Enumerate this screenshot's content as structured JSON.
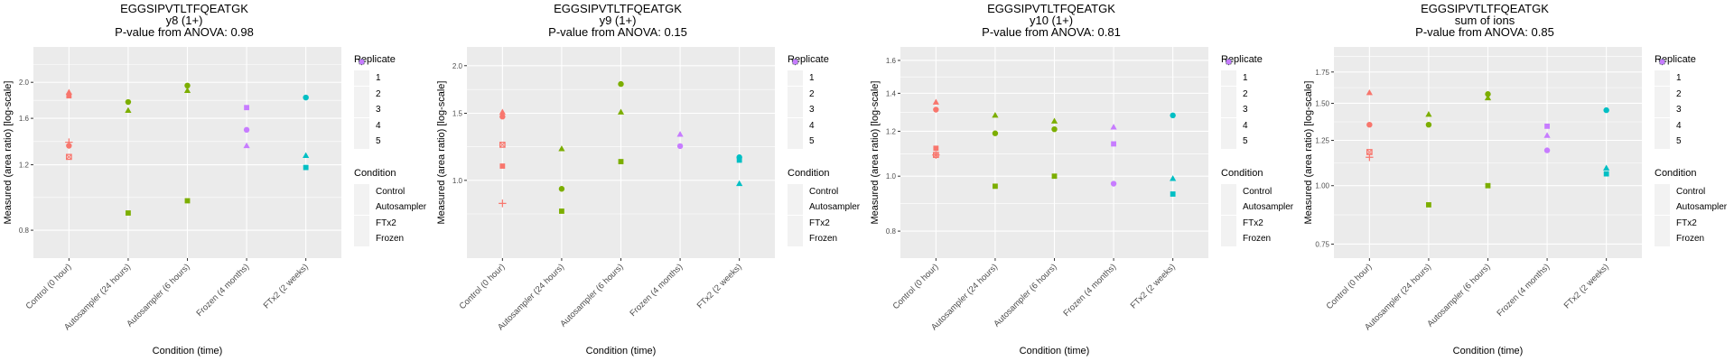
{
  "chart_data": [
    {
      "type": "scatter",
      "title": [
        "EGGSIPVTLTFQEATGK",
        "y8 (1+)",
        "P-value from ANOVA: 0.98"
      ],
      "xlabel": "Condition (time)",
      "ylabel": "Measured (area ratio) [log-scale]",
      "yscale": "log",
      "ylim": [
        0.673,
        2.49
      ],
      "yticks": [
        0.8,
        1.2,
        1.6,
        2.0
      ],
      "ytick_labels": [
        "0.8",
        "1.2",
        "1.6",
        "2.0"
      ],
      "categories": [
        "Control (0 hour)",
        "Autosampler (24 hours)",
        "Autosampler (6 hours)",
        "Frozen (4 months)",
        "FTx2 (2 weeks)"
      ],
      "points": [
        {
          "x": "Control (0 hour)",
          "y": 1.88,
          "condition": "Control",
          "replicate": 2
        },
        {
          "x": "Control (0 hour)",
          "y": 1.84,
          "condition": "Control",
          "replicate": 3
        },
        {
          "x": "Control (0 hour)",
          "y": 1.38,
          "condition": "Control",
          "replicate": 4
        },
        {
          "x": "Control (0 hour)",
          "y": 1.35,
          "condition": "Control",
          "replicate": 1
        },
        {
          "x": "Control (0 hour)",
          "y": 1.26,
          "condition": "Control",
          "replicate": 5
        },
        {
          "x": "Autosampler (24 hours)",
          "y": 1.77,
          "condition": "Autosampler",
          "replicate": 1
        },
        {
          "x": "Autosampler (24 hours)",
          "y": 1.68,
          "condition": "Autosampler",
          "replicate": 2
        },
        {
          "x": "Autosampler (24 hours)",
          "y": 0.89,
          "condition": "Autosampler",
          "replicate": 3
        },
        {
          "x": "Autosampler (6 hours)",
          "y": 1.96,
          "condition": "Autosampler",
          "replicate": 1
        },
        {
          "x": "Autosampler (6 hours)",
          "y": 1.9,
          "condition": "Autosampler",
          "replicate": 2
        },
        {
          "x": "Autosampler (6 hours)",
          "y": 0.96,
          "condition": "Autosampler",
          "replicate": 3
        },
        {
          "x": "Frozen (4 months)",
          "y": 1.71,
          "condition": "Frozen",
          "replicate": 3
        },
        {
          "x": "Frozen (4 months)",
          "y": 1.49,
          "condition": "Frozen",
          "replicate": 1
        },
        {
          "x": "Frozen (4 months)",
          "y": 1.35,
          "condition": "Frozen",
          "replicate": 2
        },
        {
          "x": "FTx2 (2 weeks)",
          "y": 1.82,
          "condition": "FTx2",
          "replicate": 1
        },
        {
          "x": "FTx2 (2 weeks)",
          "y": 1.27,
          "condition": "FTx2",
          "replicate": 2
        },
        {
          "x": "FTx2 (2 weeks)",
          "y": 1.18,
          "condition": "FTx2",
          "replicate": 3
        }
      ]
    },
    {
      "type": "scatter",
      "title": [
        "EGGSIPVTLTFQEATGK",
        "y9 (1+)",
        "P-value from ANOVA: 0.15"
      ],
      "xlabel": "Condition (time)",
      "ylabel": "Measured (area ratio) [log-scale]",
      "yscale": "log",
      "ylim": [
        0.625,
        2.24
      ],
      "yticks": [
        1.0,
        1.5,
        2.0
      ],
      "ytick_labels": [
        "1.0",
        "1.5",
        "2.0"
      ],
      "categories": [
        "Control (0 hour)",
        "Autosampler (24 hours)",
        "Autosampler (6 hours)",
        "Frozen (4 months)",
        "FTx2 (2 weeks)"
      ],
      "points": [
        {
          "x": "Control (0 hour)",
          "y": 1.51,
          "condition": "Control",
          "replicate": 2
        },
        {
          "x": "Control (0 hour)",
          "y": 1.47,
          "condition": "Control",
          "replicate": 1
        },
        {
          "x": "Control (0 hour)",
          "y": 1.24,
          "condition": "Control",
          "replicate": 5
        },
        {
          "x": "Control (0 hour)",
          "y": 1.09,
          "condition": "Control",
          "replicate": 3
        },
        {
          "x": "Control (0 hour)",
          "y": 0.87,
          "condition": "Control",
          "replicate": 4
        },
        {
          "x": "Autosampler (24 hours)",
          "y": 1.21,
          "condition": "Autosampler",
          "replicate": 2
        },
        {
          "x": "Autosampler (24 hours)",
          "y": 0.95,
          "condition": "Autosampler",
          "replicate": 1
        },
        {
          "x": "Autosampler (24 hours)",
          "y": 0.83,
          "condition": "Autosampler",
          "replicate": 3
        },
        {
          "x": "Autosampler (6 hours)",
          "y": 1.79,
          "condition": "Autosampler",
          "replicate": 1
        },
        {
          "x": "Autosampler (6 hours)",
          "y": 1.51,
          "condition": "Autosampler",
          "replicate": 2
        },
        {
          "x": "Autosampler (6 hours)",
          "y": 1.12,
          "condition": "Autosampler",
          "replicate": 3
        },
        {
          "x": "Frozen (4 months)",
          "y": 1.32,
          "condition": "Frozen",
          "replicate": 2
        },
        {
          "x": "Frozen (4 months)",
          "y": 1.23,
          "condition": "Frozen",
          "replicate": 1
        },
        {
          "x": "FTx2 (2 weeks)",
          "y": 1.15,
          "condition": "FTx2",
          "replicate": 1
        },
        {
          "x": "FTx2 (2 weeks)",
          "y": 1.13,
          "condition": "FTx2",
          "replicate": 3
        },
        {
          "x": "FTx2 (2 weeks)",
          "y": 0.98,
          "condition": "FTx2",
          "replicate": 2
        }
      ]
    },
    {
      "type": "scatter",
      "title": [
        "EGGSIPVTLTFQEATGK",
        "y10 (1+)",
        "P-value from ANOVA: 0.81"
      ],
      "xlabel": "Condition (time)",
      "ylabel": "Measured (area ratio) [log-scale]",
      "yscale": "log",
      "ylim": [
        0.717,
        1.69
      ],
      "yticks": [
        0.8,
        1.0,
        1.2,
        1.4,
        1.6
      ],
      "ytick_labels": [
        "0.8",
        "1.0",
        "1.2",
        "1.4",
        "1.6"
      ],
      "categories": [
        "Control (0 hour)",
        "Autosampler (24 hours)",
        "Autosampler (6 hours)",
        "Frozen (4 months)",
        "FTx2 (2 weeks)"
      ],
      "points": [
        {
          "x": "Control (0 hour)",
          "y": 1.35,
          "condition": "Control",
          "replicate": 2
        },
        {
          "x": "Control (0 hour)",
          "y": 1.31,
          "condition": "Control",
          "replicate": 1
        },
        {
          "x": "Control (0 hour)",
          "y": 1.12,
          "condition": "Control",
          "replicate": 3
        },
        {
          "x": "Control (0 hour)",
          "y": 1.09,
          "condition": "Control",
          "replicate": 4
        },
        {
          "x": "Control (0 hour)",
          "y": 1.09,
          "condition": "Control",
          "replicate": 5
        },
        {
          "x": "Autosampler (24 hours)",
          "y": 1.28,
          "condition": "Autosampler",
          "replicate": 2
        },
        {
          "x": "Autosampler (24 hours)",
          "y": 1.19,
          "condition": "Autosampler",
          "replicate": 1
        },
        {
          "x": "Autosampler (24 hours)",
          "y": 0.96,
          "condition": "Autosampler",
          "replicate": 3
        },
        {
          "x": "Autosampler (6 hours)",
          "y": 1.25,
          "condition": "Autosampler",
          "replicate": 2
        },
        {
          "x": "Autosampler (6 hours)",
          "y": 1.21,
          "condition": "Autosampler",
          "replicate": 1
        },
        {
          "x": "Autosampler (6 hours)",
          "y": 1.0,
          "condition": "Autosampler",
          "replicate": 3
        },
        {
          "x": "Frozen (4 months)",
          "y": 1.22,
          "condition": "Frozen",
          "replicate": 2
        },
        {
          "x": "Frozen (4 months)",
          "y": 1.14,
          "condition": "Frozen",
          "replicate": 3
        },
        {
          "x": "Frozen (4 months)",
          "y": 0.97,
          "condition": "Frozen",
          "replicate": 1
        },
        {
          "x": "FTx2 (2 weeks)",
          "y": 1.28,
          "condition": "FTx2",
          "replicate": 1
        },
        {
          "x": "FTx2 (2 weeks)",
          "y": 0.99,
          "condition": "FTx2",
          "replicate": 2
        },
        {
          "x": "FTx2 (2 weeks)",
          "y": 0.93,
          "condition": "FTx2",
          "replicate": 3
        }
      ]
    },
    {
      "type": "scatter",
      "title": [
        "EGGSIPVTLTFQEATGK",
        "sum of ions",
        "P-value from ANOVA: 0.85"
      ],
      "xlabel": "Condition (time)",
      "ylabel": "Measured (area ratio) [log-scale]",
      "yscale": "log",
      "ylim": [
        0.7,
        1.98
      ],
      "yticks": [
        0.75,
        1.0,
        1.25,
        1.5,
        1.75
      ],
      "ytick_labels": [
        "0.75",
        "1.00",
        "1.25",
        "1.50",
        "1.75"
      ],
      "categories": [
        "Control (0 hour)",
        "Autosampler (24 hours)",
        "Autosampler (6 hours)",
        "Frozen (4 months)",
        "FTx2 (2 weeks)"
      ],
      "points": [
        {
          "x": "Control (0 hour)",
          "y": 1.58,
          "condition": "Control",
          "replicate": 2
        },
        {
          "x": "Control (0 hour)",
          "y": 1.35,
          "condition": "Control",
          "replicate": 1
        },
        {
          "x": "Control (0 hour)",
          "y": 1.18,
          "condition": "Control",
          "replicate": 5
        },
        {
          "x": "Control (0 hour)",
          "y": 1.15,
          "condition": "Control",
          "replicate": 4
        },
        {
          "x": "Autosampler (24 hours)",
          "y": 1.42,
          "condition": "Autosampler",
          "replicate": 2
        },
        {
          "x": "Autosampler (24 hours)",
          "y": 1.35,
          "condition": "Autosampler",
          "replicate": 1
        },
        {
          "x": "Autosampler (24 hours)",
          "y": 0.91,
          "condition": "Autosampler",
          "replicate": 3
        },
        {
          "x": "Autosampler (6 hours)",
          "y": 1.57,
          "condition": "Autosampler",
          "replicate": 1
        },
        {
          "x": "Autosampler (6 hours)",
          "y": 1.54,
          "condition": "Autosampler",
          "replicate": 2
        },
        {
          "x": "Autosampler (6 hours)",
          "y": 1.0,
          "condition": "Autosampler",
          "replicate": 3
        },
        {
          "x": "Frozen (4 months)",
          "y": 1.34,
          "condition": "Frozen",
          "replicate": 3
        },
        {
          "x": "Frozen (4 months)",
          "y": 1.28,
          "condition": "Frozen",
          "replicate": 2
        },
        {
          "x": "Frozen (4 months)",
          "y": 1.19,
          "condition": "Frozen",
          "replicate": 1
        },
        {
          "x": "FTx2 (2 weeks)",
          "y": 1.45,
          "condition": "FTx2",
          "replicate": 1
        },
        {
          "x": "FTx2 (2 weeks)",
          "y": 1.09,
          "condition": "FTx2",
          "replicate": 2
        },
        {
          "x": "FTx2 (2 weeks)",
          "y": 1.06,
          "condition": "FTx2",
          "replicate": 3
        }
      ]
    }
  ],
  "legend": {
    "placement": "right",
    "replicate_title": "Replicate",
    "replicates": [
      {
        "label": "1",
        "shape": "circle"
      },
      {
        "label": "2",
        "shape": "triangle"
      },
      {
        "label": "3",
        "shape": "square"
      },
      {
        "label": "4",
        "shape": "plus"
      },
      {
        "label": "5",
        "shape": "square-cross"
      }
    ],
    "condition_title": "Condition",
    "conditions": [
      {
        "label": "Control",
        "color": "#F8766D"
      },
      {
        "label": "Autosampler",
        "color": "#7CAE00"
      },
      {
        "label": "FTx2",
        "color": "#00BFC4"
      },
      {
        "label": "Frozen",
        "color": "#C77CFF"
      }
    ]
  },
  "colors": {
    "panel_background": "#EBEBEB",
    "grid": "#FFFFFF",
    "legend_key_background": "#F2F2F2"
  }
}
